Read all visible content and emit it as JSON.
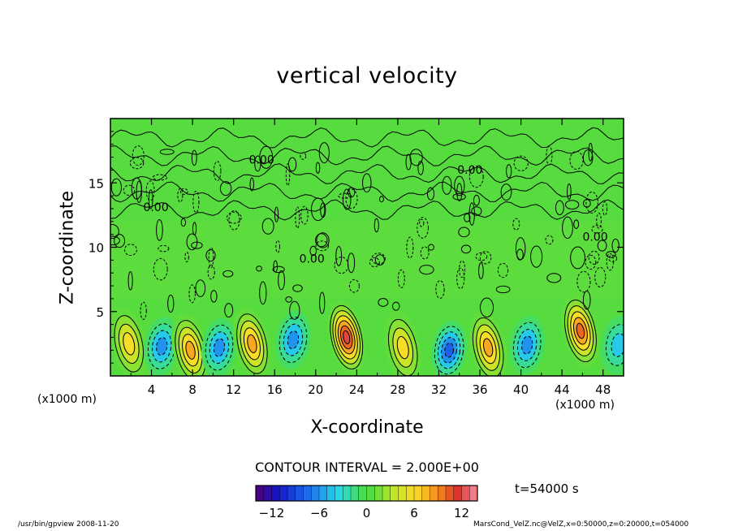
{
  "chart_data": {
    "type": "contour",
    "title": "vertical velocity",
    "xlabel": "X-coordinate",
    "ylabel": "Z-coordinate",
    "x_unit_left": "(x1000 m)",
    "x_unit_right": "(x1000 m)",
    "xlim": [
      0,
      50
    ],
    "ylim": [
      0,
      20
    ],
    "x_ticks": [
      4,
      8,
      12,
      16,
      20,
      24,
      28,
      32,
      36,
      40,
      44,
      48
    ],
    "y_ticks": [
      5,
      10,
      15
    ],
    "contour_interval_text": "CONTOUR INTERVAL = 2.000E+00",
    "time_label": "t=54000 s",
    "contour_labels": [
      "0.00",
      "0.00",
      "0.00",
      "0.00",
      "0.00"
    ],
    "colorbar": {
      "min": -14,
      "max": 14,
      "ticks": [
        -12,
        -6,
        0,
        6,
        12
      ]
    },
    "cells": [
      {
        "x": 1.8,
        "z": 2.5,
        "w": 7
      },
      {
        "x": 5.0,
        "z": 2.3,
        "w": -6
      },
      {
        "x": 7.8,
        "z": 2.0,
        "w": 8
      },
      {
        "x": 10.6,
        "z": 2.2,
        "w": -6
      },
      {
        "x": 13.8,
        "z": 2.5,
        "w": 9
      },
      {
        "x": 17.8,
        "z": 2.8,
        "w": -7
      },
      {
        "x": 23.0,
        "z": 3.0,
        "w": 12
      },
      {
        "x": 28.5,
        "z": 2.2,
        "w": 6
      },
      {
        "x": 33.0,
        "z": 2.0,
        "w": -8
      },
      {
        "x": 36.8,
        "z": 2.2,
        "w": 8
      },
      {
        "x": 40.6,
        "z": 2.4,
        "w": -6
      },
      {
        "x": 45.8,
        "z": 3.5,
        "w": 10
      },
      {
        "x": 49.5,
        "z": 2.4,
        "w": -5
      }
    ]
  },
  "footer": {
    "left": "/usr/bin/gpview  2008-11-20",
    "right": "MarsCond_VelZ.nc@VelZ,x=0:50000,z=0:20000,t=054000"
  }
}
